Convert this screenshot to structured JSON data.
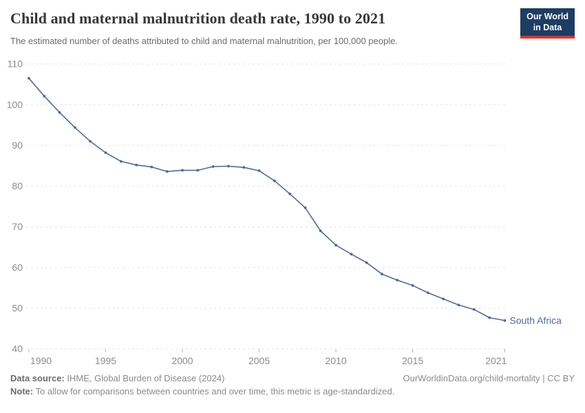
{
  "header": {
    "title": "Child and maternal malnutrition death rate, 1990 to 2021",
    "subtitle": "The estimated number of deaths attributed to child and maternal malnutrition, per 100,000 people.",
    "logo": {
      "line1": "Our World",
      "line2": "in Data"
    }
  },
  "chart_data": {
    "type": "line",
    "title": "Child and maternal malnutrition death rate, 1990 to 2021",
    "entity": "South Africa",
    "x": [
      1990,
      1991,
      1992,
      1993,
      1994,
      1995,
      1996,
      1997,
      1998,
      1999,
      2000,
      2001,
      2002,
      2003,
      2004,
      2005,
      2006,
      2007,
      2008,
      2009,
      2010,
      2011,
      2012,
      2013,
      2014,
      2015,
      2016,
      2017,
      2018,
      2019,
      2020,
      2021
    ],
    "series": [
      {
        "name": "South Africa",
        "color": "#4c6a9c",
        "values": [
          106.5,
          102.1,
          98.1,
          94.4,
          91.0,
          88.2,
          86.1,
          85.2,
          84.7,
          83.6,
          83.9,
          83.9,
          84.8,
          84.9,
          84.6,
          83.8,
          81.3,
          78.1,
          74.7,
          69.0,
          65.5,
          63.3,
          61.2,
          58.4,
          56.9,
          55.6,
          53.8,
          52.3,
          50.8,
          49.7,
          47.7,
          47.0
        ]
      }
    ],
    "x_ticks": [
      1990,
      1995,
      2000,
      2005,
      2010,
      2015,
      2021
    ],
    "y_ticks": [
      40,
      50,
      60,
      70,
      80,
      90,
      100,
      110
    ],
    "xlim": [
      1990,
      2021
    ],
    "ylim": [
      40,
      110
    ],
    "grid": "horizontal-dashed",
    "legend_position": "end-of-line",
    "end_label": "South Africa"
  },
  "footer": {
    "datasource_label": "Data source:",
    "datasource_text": " IHME, Global Burden of Disease (2024)",
    "attribution": "OurWorldinData.org/child-mortality | CC BY",
    "note_label": "Note:",
    "note_text": " To allow for comparisons between countries and over time, this metric is age-standardized."
  },
  "colors": {
    "line": "#4c6a9c",
    "grid": "#e3e3e3",
    "tick_mark": "#b0b0b0",
    "axis_text": "#8b8b8b",
    "logo_bg": "#1d3d63",
    "logo_accent": "#d8352e"
  }
}
